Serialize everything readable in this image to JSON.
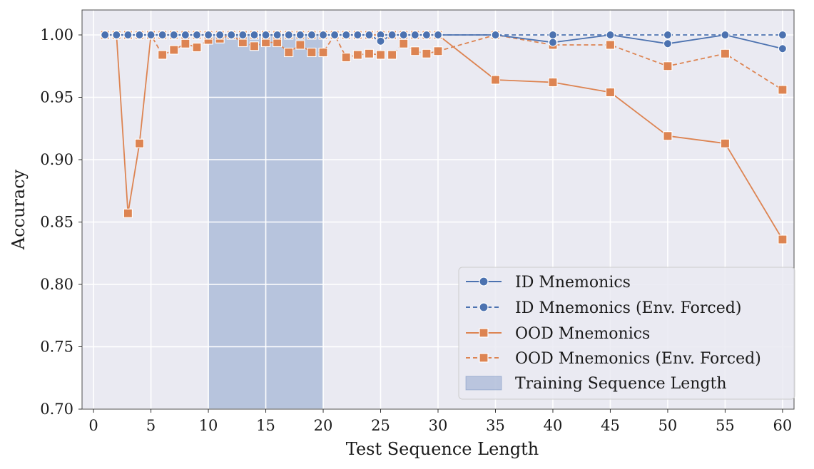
{
  "chart_data": {
    "type": "line",
    "xlabel": "Test Sequence Length",
    "ylabel": "Accuracy",
    "xlim": [
      -1,
      61
    ],
    "ylim": [
      0.7,
      1.02
    ],
    "xticks": [
      0,
      5,
      10,
      15,
      20,
      25,
      30,
      35,
      40,
      45,
      50,
      55,
      60
    ],
    "yticks": [
      0.7,
      0.75,
      0.8,
      0.85,
      0.9,
      0.95,
      1.0
    ],
    "ytick_labels": [
      "0.70",
      "0.75",
      "0.80",
      "0.85",
      "0.90",
      "0.95",
      "1.00"
    ],
    "grid": true,
    "legend_position": "lower-right",
    "training_region": {
      "label": "Training Sequence Length",
      "x_start": 10,
      "x_end": 20
    },
    "series": [
      {
        "name": "ID Mnemonics",
        "color": "#4c72b0",
        "linestyle": "solid",
        "marker": "circle",
        "x": [
          1,
          2,
          3,
          4,
          5,
          6,
          7,
          8,
          9,
          10,
          11,
          12,
          13,
          14,
          15,
          16,
          17,
          18,
          19,
          20,
          21,
          22,
          23,
          24,
          25,
          26,
          27,
          28,
          29,
          30,
          35,
          40,
          45,
          50,
          55,
          60
        ],
        "y": [
          1.0,
          1.0,
          1.0,
          1.0,
          1.0,
          1.0,
          1.0,
          1.0,
          1.0,
          1.0,
          1.0,
          1.0,
          1.0,
          1.0,
          1.0,
          1.0,
          1.0,
          1.0,
          1.0,
          1.0,
          1.0,
          1.0,
          1.0,
          1.0,
          0.995,
          1.0,
          1.0,
          1.0,
          1.0,
          1.0,
          1.0,
          0.994,
          1.0,
          0.993,
          1.0,
          0.989
        ]
      },
      {
        "name": "ID Mnemonics (Env. Forced)",
        "color": "#4c72b0",
        "linestyle": "dashed",
        "marker": "circle",
        "x": [
          1,
          2,
          3,
          4,
          5,
          6,
          7,
          8,
          9,
          10,
          11,
          12,
          13,
          14,
          15,
          16,
          17,
          18,
          19,
          20,
          21,
          22,
          23,
          24,
          25,
          26,
          27,
          28,
          29,
          30,
          35,
          40,
          45,
          50,
          55,
          60
        ],
        "y": [
          1.0,
          1.0,
          1.0,
          1.0,
          1.0,
          1.0,
          1.0,
          1.0,
          1.0,
          1.0,
          1.0,
          1.0,
          1.0,
          1.0,
          1.0,
          1.0,
          1.0,
          1.0,
          1.0,
          1.0,
          1.0,
          1.0,
          1.0,
          1.0,
          1.0,
          1.0,
          1.0,
          1.0,
          1.0,
          1.0,
          1.0,
          1.0,
          1.0,
          1.0,
          1.0,
          1.0
        ]
      },
      {
        "name": "OOD Mnemonics",
        "color": "#dd8452",
        "linestyle": "solid",
        "marker": "square",
        "x": [
          1,
          2,
          3,
          4,
          5,
          6,
          7,
          8,
          9,
          10,
          11,
          12,
          13,
          14,
          15,
          16,
          17,
          18,
          19,
          20,
          21,
          22,
          23,
          24,
          25,
          26,
          27,
          28,
          29,
          30,
          35,
          40,
          45,
          50,
          55,
          60
        ],
        "y": [
          1.0,
          1.0,
          0.857,
          0.913,
          1.0,
          1.0,
          1.0,
          1.0,
          1.0,
          1.0,
          1.0,
          1.0,
          1.0,
          1.0,
          1.0,
          1.0,
          1.0,
          1.0,
          1.0,
          1.0,
          1.0,
          1.0,
          1.0,
          1.0,
          1.0,
          1.0,
          1.0,
          1.0,
          1.0,
          1.0,
          0.964,
          0.962,
          0.954,
          0.919,
          0.913,
          0.836
        ]
      },
      {
        "name": "OOD Mnemonics (Env. Forced)",
        "color": "#dd8452",
        "linestyle": "dashed",
        "marker": "square",
        "x": [
          1,
          2,
          3,
          4,
          5,
          6,
          7,
          8,
          9,
          10,
          11,
          12,
          13,
          14,
          15,
          16,
          17,
          18,
          19,
          20,
          21,
          22,
          23,
          24,
          25,
          26,
          27,
          28,
          29,
          30,
          35,
          40,
          45,
          50,
          55,
          60
        ],
        "y": [
          1.0,
          1.0,
          1.0,
          1.0,
          1.0,
          0.984,
          0.988,
          0.993,
          0.99,
          0.996,
          0.997,
          1.0,
          0.994,
          0.991,
          0.994,
          0.994,
          0.986,
          0.992,
          0.986,
          0.986,
          1.0,
          0.982,
          0.984,
          0.985,
          0.984,
          0.984,
          0.993,
          0.987,
          0.985,
          0.987,
          1.0,
          0.992,
          0.992,
          0.975,
          0.985,
          0.956
        ]
      }
    ]
  }
}
